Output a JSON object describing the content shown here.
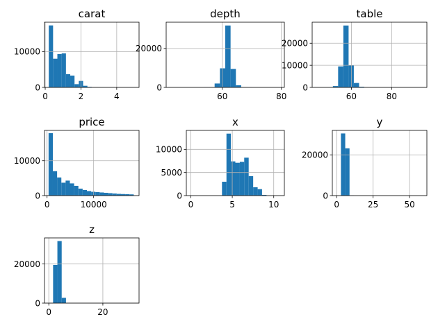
{
  "colors": {
    "bar": "#1f77b4",
    "grid": "#b0b0b0",
    "axis": "#000000"
  },
  "chart_data": [
    {
      "type": "bar",
      "title": "carat",
      "grid": true,
      "xlim": [
        -0.04,
        5.25
      ],
      "ylim": [
        0,
        18200
      ],
      "xticks": [
        0,
        2,
        4
      ],
      "yticks": [
        0,
        10000
      ],
      "bins": [
        [
          0.2,
          0.44,
          17300
        ],
        [
          0.44,
          0.68,
          8000
        ],
        [
          0.68,
          0.92,
          9300
        ],
        [
          0.92,
          1.16,
          9500
        ],
        [
          1.16,
          1.4,
          3700
        ],
        [
          1.4,
          1.64,
          3300
        ],
        [
          1.64,
          1.88,
          900
        ],
        [
          1.88,
          2.12,
          1800
        ],
        [
          2.12,
          2.36,
          450
        ],
        [
          2.36,
          2.6,
          150
        ],
        [
          2.6,
          2.84,
          60
        ],
        [
          2.84,
          3.08,
          30
        ],
        [
          3.08,
          3.32,
          10
        ],
        [
          3.32,
          3.56,
          5
        ],
        [
          3.56,
          3.8,
          3
        ],
        [
          3.8,
          4.04,
          3
        ],
        [
          4.04,
          4.28,
          2
        ],
        [
          4.28,
          4.52,
          1
        ],
        [
          4.52,
          4.76,
          1
        ],
        [
          4.76,
          5.01,
          1
        ]
      ]
    },
    {
      "type": "bar",
      "title": "depth",
      "grid": true,
      "xlim": [
        41,
        81
      ],
      "ylim": [
        0,
        33500
      ],
      "xticks": [
        60,
        80
      ],
      "yticks": [
        0,
        20000
      ],
      "bins": [
        [
          43,
          44.8,
          3
        ],
        [
          44.8,
          46.6,
          3
        ],
        [
          46.6,
          48.4,
          3
        ],
        [
          48.4,
          50.2,
          5
        ],
        [
          50.2,
          52,
          5
        ],
        [
          52,
          53.8,
          10
        ],
        [
          53.8,
          55.6,
          30
        ],
        [
          55.6,
          57.4,
          150
        ],
        [
          57.4,
          59.2,
          2000
        ],
        [
          59.2,
          61,
          9800
        ],
        [
          61,
          62.8,
          31800
        ],
        [
          62.8,
          64.6,
          9500
        ],
        [
          64.6,
          66.4,
          1100
        ],
        [
          66.4,
          68.2,
          150
        ],
        [
          68.2,
          70,
          40
        ],
        [
          70,
          71.8,
          10
        ],
        [
          71.8,
          73.6,
          5
        ],
        [
          73.6,
          75.4,
          3
        ],
        [
          75.4,
          77.2,
          2
        ],
        [
          77.2,
          79,
          2
        ]
      ]
    },
    {
      "type": "bar",
      "title": "table",
      "grid": true,
      "xlim": [
        40.5,
        97.5
      ],
      "ylim": [
        0,
        29500
      ],
      "xticks": [
        60,
        80
      ],
      "yticks": [
        0,
        10000,
        20000
      ],
      "bins": [
        [
          43,
          45.6,
          2
        ],
        [
          45.6,
          48.2,
          5
        ],
        [
          48.2,
          50.8,
          20
        ],
        [
          50.8,
          53.4,
          600
        ],
        [
          53.4,
          56,
          9500
        ],
        [
          56,
          58.6,
          28000
        ],
        [
          58.6,
          61.2,
          10000
        ],
        [
          61.2,
          63.8,
          2000
        ],
        [
          63.8,
          66.4,
          300
        ],
        [
          66.4,
          69,
          50
        ],
        [
          69,
          71.6,
          10
        ],
        [
          71.6,
          74.2,
          5
        ],
        [
          74.2,
          76.8,
          3
        ],
        [
          76.8,
          79.4,
          2
        ],
        [
          79.4,
          82,
          1
        ],
        [
          82,
          84.6,
          1
        ],
        [
          84.6,
          87.2,
          1
        ],
        [
          87.2,
          89.8,
          1
        ],
        [
          89.8,
          92.4,
          1
        ],
        [
          92.4,
          95,
          1
        ]
      ]
    },
    {
      "type": "bar",
      "title": "price",
      "grid": true,
      "xlim": [
        -550,
        19750
      ],
      "ylim": [
        0,
        18700
      ],
      "xticks": [
        0,
        10000
      ],
      "yticks": [
        0,
        10000
      ],
      "bins": [
        [
          326,
          1240,
          17900
        ],
        [
          1240,
          2155,
          7000
        ],
        [
          2155,
          3069,
          5200
        ],
        [
          3069,
          3983,
          3700
        ],
        [
          3983,
          4898,
          4300
        ],
        [
          4898,
          5812,
          3500
        ],
        [
          5812,
          6726,
          2800
        ],
        [
          6726,
          7640,
          2000
        ],
        [
          7640,
          8555,
          1600
        ],
        [
          8555,
          9469,
          1300
        ],
        [
          9469,
          10383,
          1100
        ],
        [
          10383,
          11297,
          1000
        ],
        [
          11297,
          12212,
          900
        ],
        [
          12212,
          13126,
          800
        ],
        [
          13126,
          14040,
          700
        ],
        [
          14040,
          14955,
          600
        ],
        [
          14955,
          15869,
          500
        ],
        [
          15869,
          16783,
          450
        ],
        [
          16783,
          17697,
          400
        ],
        [
          17697,
          18612,
          350
        ]
      ]
    },
    {
      "type": "bar",
      "title": "x",
      "grid": true,
      "xlim": [
        -0.54,
        11.28
      ],
      "ylim": [
        0,
        14100
      ],
      "xticks": [
        0,
        5,
        10
      ],
      "yticks": [
        0,
        5000,
        10000
      ],
      "bins": [
        [
          0,
          0.54,
          8
        ],
        [
          0.54,
          1.07,
          0
        ],
        [
          1.07,
          1.61,
          0
        ],
        [
          1.61,
          2.15,
          0
        ],
        [
          2.15,
          2.69,
          0
        ],
        [
          2.69,
          3.22,
          0
        ],
        [
          3.22,
          3.76,
          3
        ],
        [
          3.76,
          4.3,
          3000
        ],
        [
          4.3,
          4.83,
          13400
        ],
        [
          4.83,
          5.37,
          7400
        ],
        [
          5.37,
          5.91,
          7100
        ],
        [
          5.91,
          6.44,
          7300
        ],
        [
          6.44,
          6.98,
          8200
        ],
        [
          6.98,
          7.52,
          4200
        ],
        [
          7.52,
          8.06,
          1800
        ],
        [
          8.06,
          8.59,
          1400
        ],
        [
          8.59,
          9.13,
          150
        ],
        [
          9.13,
          9.67,
          20
        ],
        [
          9.67,
          10.2,
          5
        ],
        [
          10.2,
          10.74,
          3
        ]
      ]
    },
    {
      "type": "bar",
      "title": "y",
      "grid": true,
      "xlim": [
        -2.95,
        61.85
      ],
      "ylim": [
        0,
        32000
      ],
      "xticks": [
        0,
        25,
        50
      ],
      "yticks": [
        0,
        20000
      ],
      "bins": [
        [
          0,
          2.95,
          7
        ],
        [
          2.95,
          5.9,
          30500
        ],
        [
          5.9,
          8.85,
          23200
        ],
        [
          8.85,
          11.8,
          160
        ],
        [
          11.8,
          14.75,
          2
        ],
        [
          14.75,
          17.7,
          0
        ],
        [
          17.7,
          20.65,
          0
        ],
        [
          20.65,
          23.6,
          0
        ],
        [
          23.6,
          26.55,
          0
        ],
        [
          26.55,
          29.5,
          0
        ],
        [
          29.5,
          32.45,
          1
        ],
        [
          32.45,
          35.4,
          0
        ],
        [
          35.4,
          38.35,
          0
        ],
        [
          38.35,
          41.3,
          0
        ],
        [
          41.3,
          44.25,
          0
        ],
        [
          44.25,
          47.2,
          0
        ],
        [
          47.2,
          50.15,
          0
        ],
        [
          50.15,
          53.1,
          0
        ],
        [
          53.1,
          56.05,
          0
        ],
        [
          56.05,
          58.9,
          1
        ]
      ]
    },
    {
      "type": "bar",
      "title": "z",
      "grid": true,
      "xlim": [
        -1.59,
        33.39
      ],
      "ylim": [
        0,
        33300
      ],
      "xticks": [
        0,
        20
      ],
      "yticks": [
        0,
        20000
      ],
      "bins": [
        [
          0,
          1.59,
          20
        ],
        [
          1.59,
          3.18,
          19500
        ],
        [
          3.18,
          4.77,
          31700
        ],
        [
          4.77,
          6.36,
          2700
        ],
        [
          6.36,
          7.95,
          40
        ],
        [
          7.95,
          9.54,
          2
        ],
        [
          9.54,
          11.13,
          0
        ],
        [
          11.13,
          12.72,
          0
        ],
        [
          12.72,
          14.31,
          0
        ],
        [
          14.31,
          15.9,
          0
        ],
        [
          15.9,
          17.49,
          0
        ],
        [
          17.49,
          19.08,
          0
        ],
        [
          19.08,
          20.67,
          0
        ],
        [
          20.67,
          22.26,
          0
        ],
        [
          22.26,
          23.85,
          0
        ],
        [
          23.85,
          25.44,
          0
        ],
        [
          25.44,
          27.03,
          0
        ],
        [
          27.03,
          28.62,
          0
        ],
        [
          28.62,
          30.21,
          0
        ],
        [
          30.21,
          31.8,
          1
        ]
      ]
    }
  ]
}
